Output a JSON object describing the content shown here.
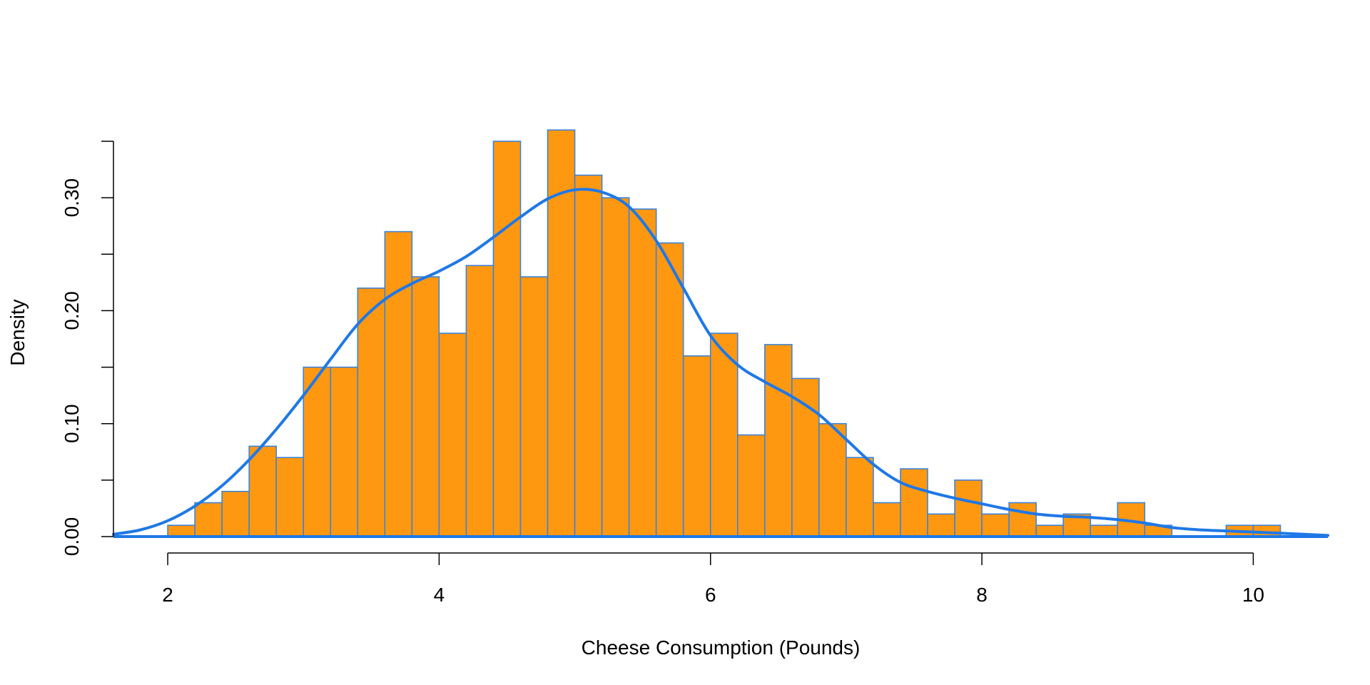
{
  "chart_data": {
    "type": "bar",
    "title": "",
    "xlabel": "Cheese Consumption (Pounds)",
    "ylabel": "Density",
    "xlim": [
      1.6,
      10.55
    ],
    "ylim": [
      0,
      0.35
    ],
    "x_ticks": [
      2,
      4,
      6,
      8,
      10
    ],
    "x_tick_labels": [
      "2",
      "4",
      "6",
      "8",
      "10"
    ],
    "y_ticks": [
      0,
      0.05,
      0.1,
      0.15,
      0.2,
      0.25,
      0.3,
      0.35
    ],
    "y_tick_labels": [
      "0.00",
      "",
      "0.10",
      "",
      "0.20",
      "",
      "0.30",
      ""
    ],
    "bin_width": 0.2,
    "bin_starts": [
      2.0,
      2.2,
      2.4,
      2.6,
      2.8,
      3.0,
      3.2,
      3.4,
      3.6,
      3.8,
      4.0,
      4.2,
      4.4,
      4.6,
      4.8,
      5.0,
      5.2,
      5.4,
      5.6,
      5.8,
      6.0,
      6.2,
      6.4,
      6.6,
      6.8,
      7.0,
      7.2,
      7.4,
      7.6,
      7.8,
      8.0,
      8.2,
      8.4,
      8.6,
      8.8,
      9.0,
      9.2,
      9.4,
      9.6,
      9.8,
      10.0
    ],
    "values": [
      0.01,
      0.03,
      0.04,
      0.08,
      0.07,
      0.15,
      0.15,
      0.22,
      0.27,
      0.23,
      0.18,
      0.24,
      0.35,
      0.23,
      0.36,
      0.32,
      0.3,
      0.29,
      0.26,
      0.16,
      0.18,
      0.09,
      0.17,
      0.14,
      0.1,
      0.07,
      0.03,
      0.06,
      0.02,
      0.05,
      0.02,
      0.03,
      0.01,
      0.02,
      0.01,
      0.03,
      0.01,
      0.0,
      0.0,
      0.01,
      0.01
    ],
    "density_curve": {
      "x": [
        1.6,
        1.8,
        2.0,
        2.2,
        2.4,
        2.6,
        2.8,
        3.0,
        3.2,
        3.4,
        3.6,
        3.8,
        4.0,
        4.2,
        4.4,
        4.6,
        4.8,
        5.0,
        5.2,
        5.4,
        5.6,
        5.8,
        6.0,
        6.2,
        6.4,
        6.6,
        6.8,
        7.0,
        7.2,
        7.4,
        7.6,
        7.8,
        8.0,
        8.2,
        8.4,
        8.6,
        8.8,
        9.0,
        9.2,
        9.4,
        9.6,
        9.8,
        10.0,
        10.2,
        10.55
      ],
      "y": [
        0.002,
        0.006,
        0.014,
        0.027,
        0.045,
        0.068,
        0.095,
        0.125,
        0.157,
        0.188,
        0.21,
        0.224,
        0.235,
        0.248,
        0.265,
        0.283,
        0.299,
        0.307,
        0.305,
        0.292,
        0.262,
        0.22,
        0.178,
        0.152,
        0.137,
        0.124,
        0.108,
        0.086,
        0.064,
        0.048,
        0.04,
        0.034,
        0.029,
        0.024,
        0.02,
        0.018,
        0.017,
        0.015,
        0.012,
        0.008,
        0.006,
        0.005,
        0.004,
        0.003,
        0.001
      ]
    },
    "colors": {
      "bar_fill": "#FF9811",
      "bar_border": "#3B84D9",
      "curve": "#1F78E6",
      "axis": "#000000"
    },
    "grid": false,
    "legend": "none"
  }
}
